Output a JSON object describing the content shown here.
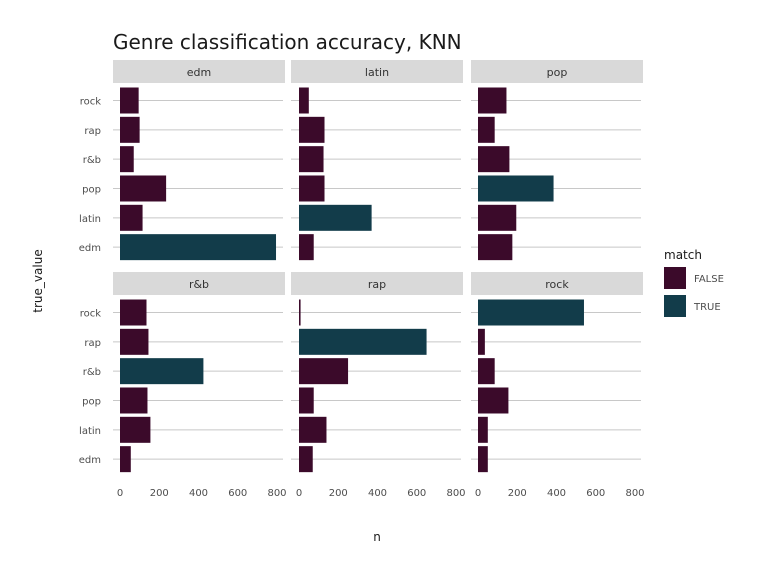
{
  "chart_data": {
    "type": "bar",
    "orientation": "horizontal",
    "title": "Genre classification accuracy, KNN",
    "xlabel": "n",
    "ylabel": "true_value",
    "xlim": [
      0,
      800
    ],
    "x_ticks": [
      "0",
      "200",
      "400",
      "600",
      "800"
    ],
    "categories": [
      "edm",
      "latin",
      "pop",
      "r&b",
      "rap",
      "rock"
    ],
    "grid": true,
    "legend": {
      "title": "match",
      "position": "right",
      "entries": [
        {
          "label": "FALSE",
          "color": "#3b0a2a"
        },
        {
          "label": "TRUE",
          "color": "#123c4a"
        }
      ]
    },
    "facets": [
      {
        "name": "edm",
        "values": {
          "rock": 95,
          "rap": 100,
          "r&b": 70,
          "pop": 235,
          "latin": 115,
          "edm": 795
        },
        "true_category": "edm"
      },
      {
        "name": "latin",
        "values": {
          "rock": 50,
          "rap": 130,
          "r&b": 125,
          "pop": 130,
          "latin": 370,
          "edm": 75
        },
        "true_category": "latin"
      },
      {
        "name": "pop",
        "values": {
          "rock": 145,
          "rap": 85,
          "r&b": 160,
          "pop": 385,
          "latin": 195,
          "edm": 175
        },
        "true_category": "pop"
      },
      {
        "name": "r&b",
        "values": {
          "rock": 135,
          "rap": 145,
          "r&b": 425,
          "pop": 140,
          "latin": 155,
          "edm": 55
        },
        "true_category": "r&b"
      },
      {
        "name": "rap",
        "values": {
          "rock": 8,
          "rap": 650,
          "r&b": 250,
          "pop": 75,
          "latin": 140,
          "edm": 70
        },
        "true_category": "rap"
      },
      {
        "name": "rock",
        "values": {
          "rock": 540,
          "rap": 35,
          "r&b": 85,
          "pop": 155,
          "latin": 50,
          "edm": 50
        },
        "true_category": "rock"
      }
    ]
  }
}
